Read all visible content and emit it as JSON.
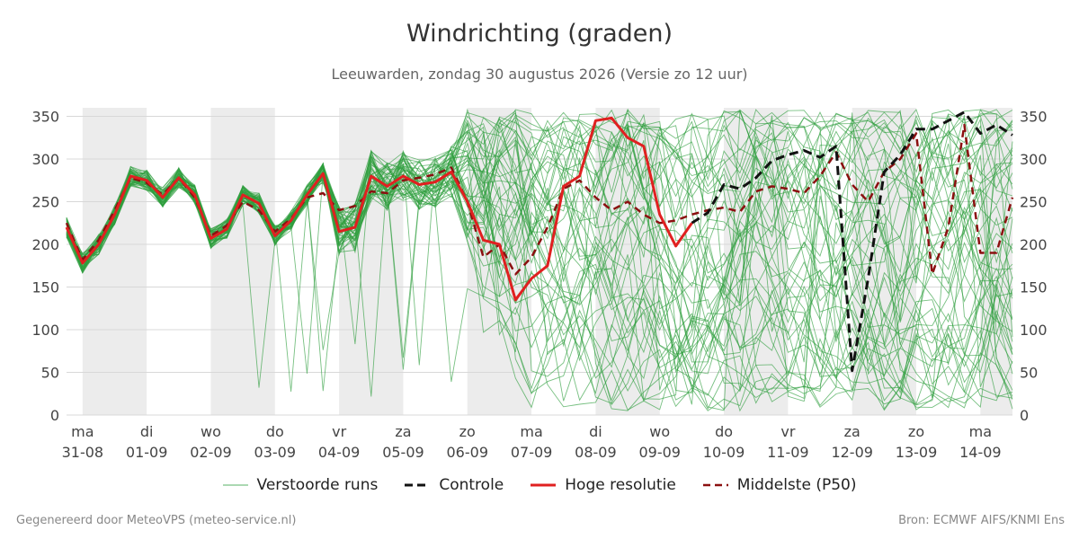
{
  "header": {
    "title": "Windrichting (graden)",
    "subtitle": "Leeuwarden, zondag 30 augustus 2026 (Versie zo 12 uur)"
  },
  "footer": {
    "left": "Gegenereerd door MeteoVPS (meteo-service.nl)",
    "right": "Bron: ECMWF AIFS/KNMI Ens"
  },
  "legend": {
    "items": [
      {
        "label": "Verstoorde runs",
        "color": "#2e9e3e",
        "style": "thin"
      },
      {
        "label": "Controle",
        "color": "#111111",
        "style": "dashed"
      },
      {
        "label": "Hoge resolutie",
        "color": "#e02020",
        "style": "solid"
      },
      {
        "label": "Middelste (P50)",
        "color": "#8b1010",
        "style": "dashed"
      }
    ]
  },
  "chart_data": {
    "type": "line",
    "title": "Windrichting (graden)",
    "ylim": [
      0,
      360
    ],
    "yticks": [
      0,
      50,
      100,
      150,
      200,
      250,
      300,
      350
    ],
    "xlim": [
      -0.25,
      14.5
    ],
    "x_unit": "days since 31-08 00:00",
    "xticks": [
      {
        "day": "ma",
        "date": "31-08"
      },
      {
        "day": "di",
        "date": "01-09"
      },
      {
        "day": "wo",
        "date": "02-09"
      },
      {
        "day": "do",
        "date": "03-09"
      },
      {
        "day": "vr",
        "date": "04-09"
      },
      {
        "day": "za",
        "date": "05-09"
      },
      {
        "day": "zo",
        "date": "06-09"
      },
      {
        "day": "ma",
        "date": "07-09"
      },
      {
        "day": "di",
        "date": "08-09"
      },
      {
        "day": "wo",
        "date": "09-09"
      },
      {
        "day": "do",
        "date": "10-09"
      },
      {
        "day": "vr",
        "date": "11-09"
      },
      {
        "day": "za",
        "date": "12-09"
      },
      {
        "day": "zo",
        "date": "13-09"
      },
      {
        "day": "ma",
        "date": "14-09"
      }
    ],
    "shaded_days": [
      0,
      2,
      4,
      6,
      8,
      10,
      12,
      14
    ],
    "grid": true,
    "legend_position": "bottom",
    "series": [
      {
        "name": "Hoge resolutie",
        "color": "#e02020",
        "x": [
          -0.25,
          0,
          0.25,
          0.5,
          0.75,
          1.0,
          1.25,
          1.5,
          1.75,
          2.0,
          2.25,
          2.5,
          2.75,
          3.0,
          3.25,
          3.5,
          3.75,
          4.0,
          4.25,
          4.5,
          4.75,
          5.0,
          5.25,
          5.5,
          5.75,
          6.0,
          6.25,
          6.5,
          6.75,
          7.0,
          7.25,
          7.5,
          7.75,
          8.0,
          8.25,
          8.5,
          8.75,
          9.0,
          9.25,
          9.5
        ],
        "y": [
          220,
          178,
          200,
          235,
          280,
          275,
          255,
          278,
          258,
          207,
          218,
          258,
          248,
          210,
          228,
          258,
          283,
          215,
          220,
          280,
          268,
          280,
          270,
          273,
          285,
          250,
          205,
          200,
          135,
          160,
          175,
          268,
          280,
          345,
          348,
          325,
          315,
          235,
          198,
          225
        ]
      },
      {
        "name": "Controle",
        "color": "#111111",
        "x": [
          9.5,
          9.75,
          10.0,
          10.25,
          10.5,
          10.75,
          11.0,
          11.25,
          11.5,
          11.75,
          12.0,
          12.25,
          12.5,
          12.75,
          13.0,
          13.25,
          13.5,
          13.75,
          14.0,
          14.25,
          14.5
        ],
        "y": [
          225,
          237,
          270,
          265,
          278,
          298,
          305,
          310,
          302,
          315,
          52,
          160,
          285,
          305,
          335,
          335,
          345,
          355,
          330,
          340,
          328
        ]
      },
      {
        "name": "Middelste (P50)",
        "color": "#8b1010",
        "x": [
          -0.25,
          0,
          0.25,
          0.5,
          0.75,
          1.0,
          1.25,
          1.5,
          1.75,
          2.0,
          2.25,
          2.5,
          2.75,
          3.0,
          3.25,
          3.5,
          3.75,
          4.0,
          4.25,
          4.5,
          4.75,
          5.0,
          5.25,
          5.5,
          5.75,
          6.0,
          6.25,
          6.5,
          6.75,
          7.0,
          7.25,
          7.5,
          7.75,
          8.0,
          8.25,
          8.5,
          8.75,
          9.0,
          9.25,
          9.5,
          9.75,
          10.0,
          10.25,
          10.5,
          10.75,
          11.0,
          11.25,
          11.5,
          11.75,
          12.0,
          12.25,
          12.5,
          12.75,
          13.0,
          13.25,
          13.5,
          13.75,
          14.0,
          14.25,
          14.5
        ],
        "y": [
          225,
          182,
          205,
          240,
          278,
          272,
          258,
          278,
          255,
          210,
          222,
          250,
          240,
          215,
          230,
          255,
          260,
          240,
          245,
          262,
          260,
          275,
          278,
          282,
          290,
          250,
          185,
          200,
          165,
          185,
          220,
          265,
          275,
          255,
          240,
          250,
          235,
          225,
          228,
          235,
          240,
          243,
          238,
          262,
          268,
          265,
          260,
          280,
          308,
          270,
          250,
          285,
          300,
          330,
          165,
          220,
          340,
          190,
          190,
          255
        ]
      }
    ]
  }
}
